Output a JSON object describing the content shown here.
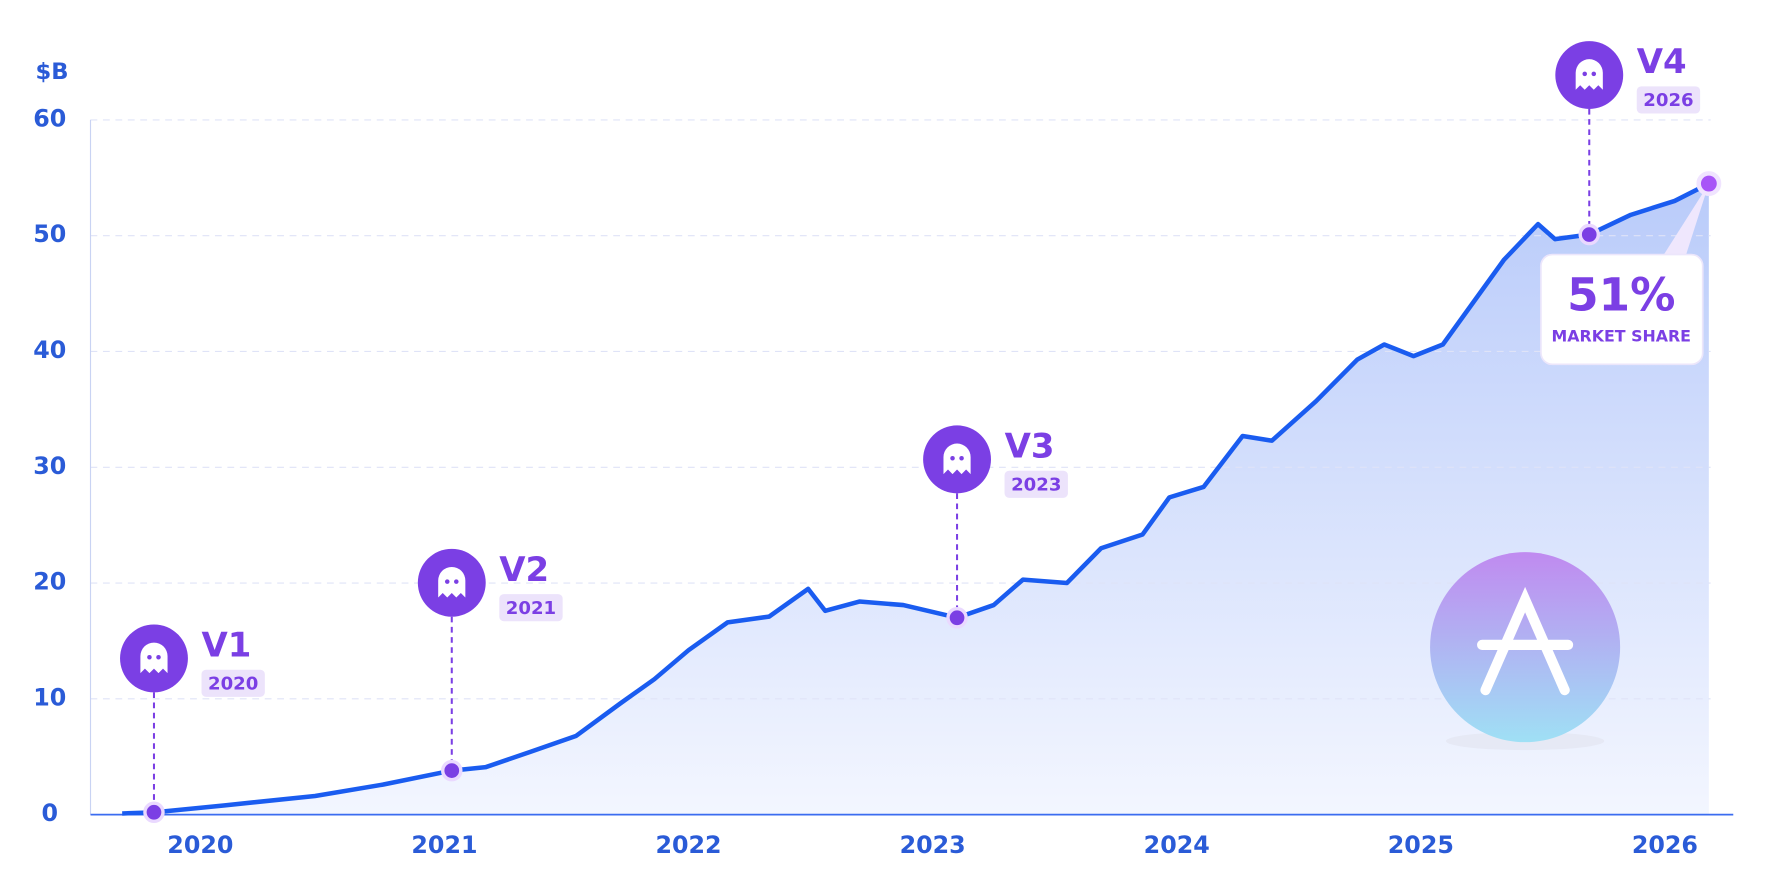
{
  "chart_data": {
    "type": "line",
    "y_unit": "$B",
    "x": [
      2019.68,
      2019.81,
      2020.1,
      2020.47,
      2020.75,
      2021.03,
      2021.17,
      2021.35,
      2021.54,
      2021.72,
      2021.86,
      2022.0,
      2022.16,
      2022.33,
      2022.49,
      2022.56,
      2022.7,
      2022.88,
      2023.1,
      2023.25,
      2023.37,
      2023.55,
      2023.69,
      2023.86,
      2023.97,
      2024.11,
      2024.27,
      2024.39,
      2024.57,
      2024.74,
      2024.85,
      2024.97,
      2025.09,
      2025.34,
      2025.48,
      2025.55,
      2025.69,
      2025.86,
      2026.04,
      2026.18
    ],
    "series": [
      {
        "color": "#1a5cf0",
        "values": [
          0.1,
          0.2,
          0.8,
          1.6,
          2.6,
          3.8,
          4.1,
          5.4,
          6.8,
          9.6,
          11.7,
          14.2,
          16.6,
          17.1,
          19.5,
          17.6,
          18.4,
          18.1,
          17.0,
          18.1,
          20.3,
          20.0,
          23.0,
          24.2,
          27.4,
          28.3,
          32.7,
          32.3,
          35.7,
          39.3,
          40.6,
          39.6,
          40.6,
          47.9,
          51.0,
          49.7,
          50.1,
          51.8,
          53.0,
          54.5
        ]
      }
    ],
    "xlim": [
      2019.55,
      2026.28
    ],
    "xticks": [
      2020,
      2021,
      2022,
      2023,
      2024,
      2025,
      2026
    ],
    "ylim": [
      0,
      60
    ],
    "yticks": [
      0,
      10,
      20,
      30,
      40,
      50,
      60
    ],
    "grid": true,
    "milestones": [
      {
        "label": "V1",
        "year": "2020",
        "x": 2019.81,
        "value": 0.2
      },
      {
        "label": "V2",
        "year": "2021",
        "x": 2021.03,
        "value": 3.8
      },
      {
        "label": "V3",
        "year": "2023",
        "x": 2023.1,
        "value": 17.0
      },
      {
        "label": "V4",
        "year": "2026",
        "x": 2025.69,
        "value": 50.1
      }
    ],
    "callout": {
      "value": "51%",
      "label": "MARKET SHARE"
    }
  }
}
